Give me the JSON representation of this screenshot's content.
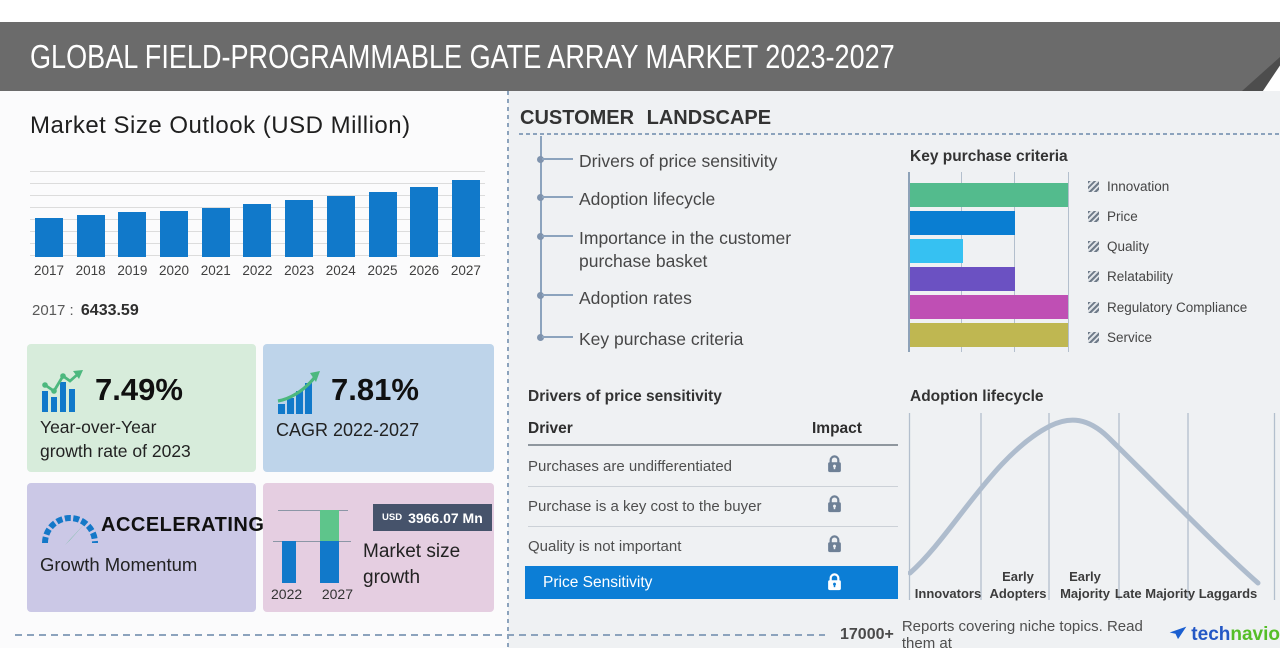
{
  "banner": {
    "title": "GLOBAL FIELD-PROGRAMMABLE GATE ARRAY MARKET 2023-2027"
  },
  "market_size": {
    "title": "Market Size Outlook (USD Million)",
    "note": {
      "year": "2017",
      "separator": ":",
      "value": "6433.59"
    }
  },
  "chart_data": [
    {
      "type": "bar",
      "title": "Market Size Outlook (USD Million)",
      "categories": [
        "2017",
        "2018",
        "2019",
        "2020",
        "2021",
        "2022",
        "2023",
        "2024",
        "2025",
        "2026",
        "2027"
      ],
      "values": [
        6433.59,
        6950,
        7390,
        7620,
        8040,
        8690,
        9340,
        10010,
        10730,
        11500,
        12656
      ],
      "ylim": [
        0,
        12656
      ],
      "bar_color": "#1179ca",
      "grid": "horizontal",
      "annotation": "2017 : 6433.59"
    },
    {
      "type": "bar",
      "orientation": "horizontal",
      "title": "Key purchase criteria",
      "categories": [
        "Innovation",
        "Price",
        "Quality",
        "Relatability",
        "Regulatory Compliance",
        "Service"
      ],
      "values": [
        100,
        66.7,
        33.3,
        66.7,
        100,
        100
      ],
      "unit": "percent-of-axis-width",
      "colors": [
        "#53bb8d",
        "#0a7ed2",
        "#36c1f2",
        "#6b51c2",
        "#bf4fb4",
        "#bfb751"
      ],
      "legend_position": "right",
      "grid": "vertical"
    },
    {
      "type": "bar",
      "title": "Market size growth",
      "categories": [
        "2022",
        "2027"
      ],
      "values": [
        8690,
        12656
      ],
      "annotation": "USD 3966.07 Mn",
      "colors": {
        "base": "#1179ca",
        "growth": "#5ec58b"
      }
    },
    {
      "type": "line",
      "title": "Adoption lifecycle",
      "shape": "bell-curve",
      "categories": [
        "Innovators",
        "Early Adopters",
        "Early Majority",
        "Late Majority",
        "Laggards"
      ],
      "curve_color": "#aebccd"
    }
  ],
  "stats": {
    "yoy": {
      "value": "7.49%",
      "line1": "Year-over-Year",
      "line2": "growth rate of 2023"
    },
    "cagr": {
      "value": "7.81%",
      "label": "CAGR 2022-2027"
    },
    "momentum": {
      "value": "ACCELERATING",
      "label": "Growth Momentum"
    },
    "growth": {
      "currency": "USD",
      "amount": "3966.07 Mn",
      "label": "Market size growth",
      "year_start": "2022",
      "year_end": "2027"
    }
  },
  "customer_landscape": {
    "heading": "CUSTOMER LANDSCAPE",
    "items": [
      "Drivers of price sensitivity",
      "Adoption lifecycle",
      "Importance in the customer purchase basket",
      "Adoption rates",
      "Key purchase criteria"
    ]
  },
  "key_purchase_criteria": {
    "heading": "Key purchase criteria",
    "legend": [
      "Innovation",
      "Price",
      "Quality",
      "Relatability",
      "Regulatory Compliance",
      "Service"
    ]
  },
  "price_sensitivity": {
    "heading": "Drivers of price sensitivity",
    "columns": {
      "driver": "Driver",
      "impact": "Impact"
    },
    "rows": [
      "Purchases are undifferentiated",
      "Purchase is a key cost to the buyer",
      "Quality is not important"
    ],
    "highlight": "Price Sensitivity"
  },
  "adoption_lifecycle": {
    "heading": "Adoption lifecycle",
    "stages": [
      "Innovators",
      "Early Adopters",
      "Early Majority",
      "Late Majority",
      "Laggards"
    ]
  },
  "footer": {
    "count": "17000+",
    "text": "Reports covering niche topics. Read them at",
    "brand": {
      "tech": "tech",
      "navio": "navio"
    }
  },
  "colors": {
    "banner": "#6b6b6b",
    "accent_blue": "#1179ca",
    "accent_green": "#4cb87e",
    "highlight_row": "#0c7ed6",
    "badge_bg": "#46536b",
    "panel_green": "#d7ecdb",
    "panel_blue": "#bed4ea",
    "panel_purple": "#cbc8e6",
    "panel_pink": "#e5cee1",
    "curve": "#aebccd",
    "lock": "#6e8096",
    "brand_blue": "#2457c5",
    "brand_green": "#55be27"
  }
}
